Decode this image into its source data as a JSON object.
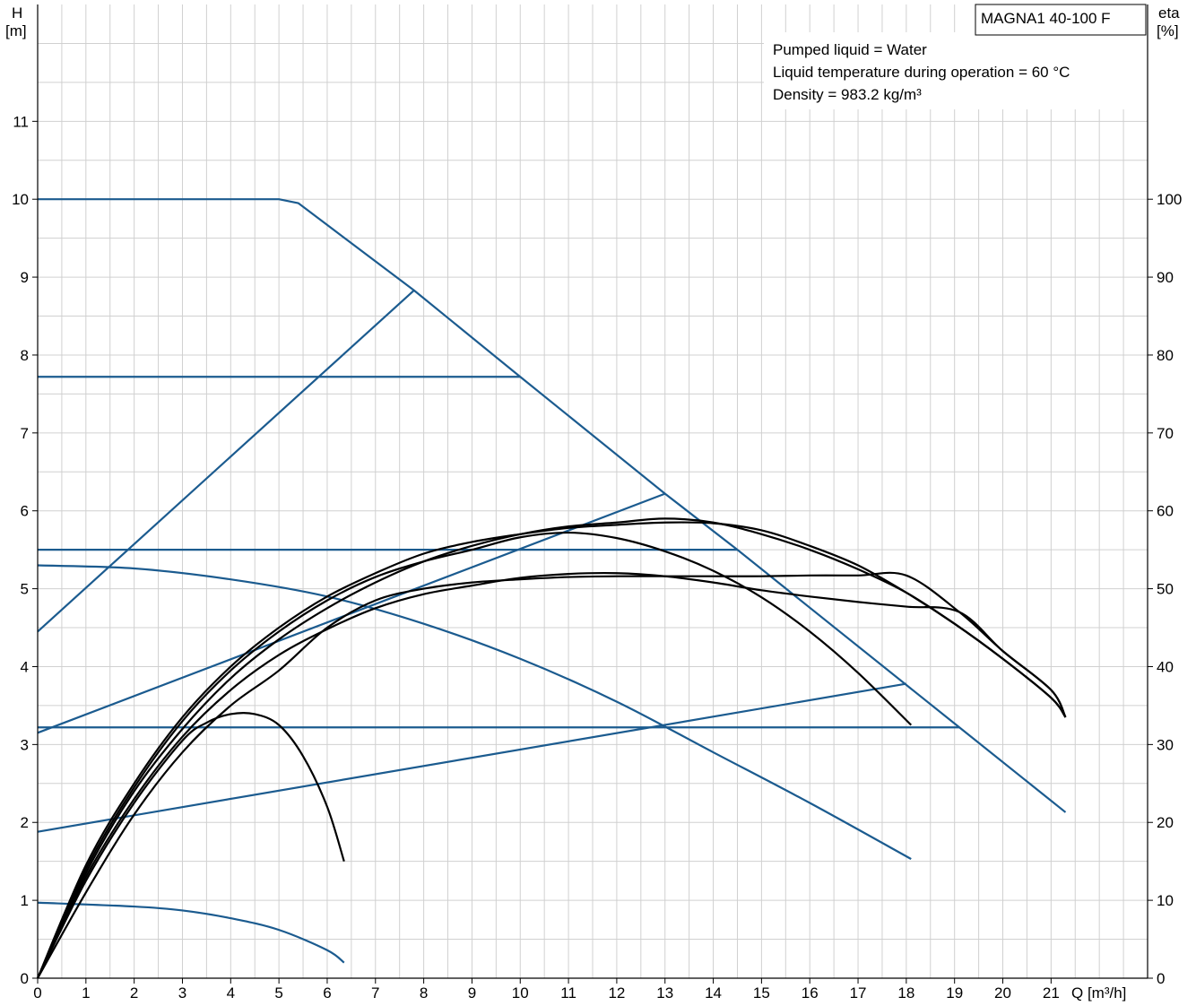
{
  "chart_data": {
    "type": "line",
    "model": "MAGNA1 40-100 F",
    "info_lines": [
      "Pumped liquid = Water",
      "Liquid temperature during operation = 60 °C",
      "Density = 983.2 kg/m³"
    ],
    "y_label": "H",
    "y_unit": "[m]",
    "y2_label": "eta",
    "y2_unit": "[%]",
    "x_label": "Q [m³/h]",
    "xlim": [
      0,
      23
    ],
    "ylim": [
      0,
      12.5
    ],
    "y2lim": [
      0,
      125
    ],
    "x_ticks": [
      0,
      1,
      2,
      3,
      4,
      5,
      6,
      7,
      8,
      9,
      10,
      11,
      12,
      13,
      14,
      15,
      16,
      17,
      18,
      19,
      20,
      21
    ],
    "y_ticks": [
      0,
      1,
      2,
      3,
      4,
      5,
      6,
      7,
      8,
      9,
      10,
      11
    ],
    "y2_ticks": [
      0,
      10,
      20,
      30,
      40,
      50,
      60,
      70,
      80,
      90,
      100
    ],
    "grid": true,
    "colors": {
      "head": "#1b5b8f",
      "efficiency": "#000000",
      "grid": "#d0d0d0"
    },
    "head_curves": [
      {
        "mode": "max_head_constant_curve",
        "points": [
          [
            0,
            10.0
          ],
          [
            5.0,
            10.0
          ],
          [
            5.4,
            9.95
          ],
          [
            7.8,
            8.83
          ],
          [
            10.0,
            7.72
          ],
          [
            13.0,
            6.22
          ],
          [
            14.5,
            5.5
          ],
          [
            19.1,
            3.22
          ],
          [
            21.3,
            2.13
          ]
        ]
      },
      {
        "mode": "proportional_pressure_max",
        "points": [
          [
            0,
            4.45
          ],
          [
            7.8,
            8.83
          ]
        ]
      },
      {
        "mode": "constant_pressure_7.7",
        "points": [
          [
            0,
            7.72
          ],
          [
            10.0,
            7.72
          ]
        ]
      },
      {
        "mode": "proportional_pressure_mid",
        "points": [
          [
            0,
            3.15
          ],
          [
            13.0,
            6.22
          ]
        ]
      },
      {
        "mode": "constant_pressure_5.5",
        "points": [
          [
            0,
            5.5
          ],
          [
            14.5,
            5.5
          ]
        ]
      },
      {
        "mode": "proportional_pressure_min",
        "points": [
          [
            0,
            1.88
          ],
          [
            18.0,
            3.78
          ]
        ]
      },
      {
        "mode": "constant_pressure_3.2",
        "points": [
          [
            0,
            3.22
          ],
          [
            19.1,
            3.22
          ]
        ]
      },
      {
        "mode": "constant_curve_mid",
        "points": [
          [
            0,
            5.3
          ],
          [
            2,
            5.26
          ],
          [
            4,
            5.12
          ],
          [
            6,
            4.9
          ],
          [
            8,
            4.55
          ],
          [
            10,
            4.1
          ],
          [
            12,
            3.55
          ],
          [
            14,
            2.9
          ],
          [
            16,
            2.25
          ],
          [
            18.1,
            1.53
          ]
        ]
      },
      {
        "mode": "constant_curve_min",
        "points": [
          [
            0,
            0.97
          ],
          [
            2,
            0.92
          ],
          [
            3,
            0.87
          ],
          [
            4,
            0.77
          ],
          [
            5,
            0.62
          ],
          [
            6,
            0.36
          ],
          [
            6.35,
            0.2
          ]
        ]
      }
    ],
    "efficiency_curves": [
      {
        "points": [
          [
            0,
            0
          ],
          [
            1,
            12.5
          ],
          [
            2,
            22.5
          ],
          [
            3,
            30.5
          ],
          [
            3.5,
            32.8
          ],
          [
            4,
            33.9
          ],
          [
            4.5,
            33.9
          ],
          [
            5,
            32.5
          ],
          [
            5.5,
            28.5
          ],
          [
            6,
            22
          ],
          [
            6.35,
            15
          ]
        ]
      },
      {
        "points": [
          [
            0,
            0
          ],
          [
            1,
            14
          ],
          [
            2,
            24.5
          ],
          [
            3,
            33
          ],
          [
            4,
            39.5
          ],
          [
            5,
            44.5
          ],
          [
            6,
            48.5
          ],
          [
            7,
            51.5
          ],
          [
            8,
            53.5
          ],
          [
            9,
            55
          ],
          [
            10,
            56.6
          ],
          [
            11,
            57.2
          ],
          [
            12,
            56.5
          ],
          [
            13,
            54.8
          ],
          [
            14,
            52.3
          ],
          [
            15,
            48.9
          ],
          [
            16,
            44.5
          ],
          [
            17,
            39.2
          ],
          [
            18.1,
            32.5
          ]
        ]
      },
      {
        "points": [
          [
            0,
            0
          ],
          [
            1,
            13
          ],
          [
            2,
            23
          ],
          [
            3,
            31
          ],
          [
            4,
            37
          ],
          [
            5,
            41.5
          ],
          [
            6,
            44.8
          ],
          [
            7,
            47.5
          ],
          [
            8,
            49.3
          ],
          [
            9,
            50.4
          ],
          [
            10,
            51.4
          ],
          [
            11,
            51.9
          ],
          [
            12,
            52
          ],
          [
            13,
            51.6
          ],
          [
            14,
            50.8
          ],
          [
            15,
            49.8
          ],
          [
            16,
            49
          ],
          [
            17,
            48.3
          ],
          [
            18,
            47.7
          ],
          [
            19.1,
            47
          ],
          [
            20,
            42
          ],
          [
            21,
            37
          ],
          [
            21.3,
            33.5
          ]
        ]
      },
      {
        "points": [
          [
            0,
            0
          ],
          [
            1,
            11
          ],
          [
            2,
            21
          ],
          [
            3,
            29
          ],
          [
            4,
            35
          ],
          [
            5,
            39.5
          ],
          [
            6,
            45
          ],
          [
            7,
            48.5
          ],
          [
            8,
            50
          ],
          [
            9,
            50.8
          ],
          [
            10,
            51.2
          ],
          [
            11,
            51.5
          ],
          [
            12,
            51.6
          ],
          [
            13,
            51.6
          ],
          [
            14,
            51.6
          ],
          [
            15,
            51.6
          ],
          [
            16,
            51.7
          ],
          [
            17,
            51.7
          ],
          [
            18,
            51.7
          ],
          [
            19.1,
            47
          ],
          [
            20,
            42
          ],
          [
            21,
            37
          ],
          [
            21.3,
            33.5
          ]
        ]
      },
      {
        "points": [
          [
            0,
            0
          ],
          [
            1,
            13.5
          ],
          [
            2,
            24
          ],
          [
            3,
            32
          ],
          [
            4,
            38.5
          ],
          [
            5,
            43.5
          ],
          [
            6,
            47.5
          ],
          [
            7,
            50.8
          ],
          [
            8,
            53.5
          ],
          [
            9,
            55.5
          ],
          [
            10,
            57
          ],
          [
            11,
            58
          ],
          [
            12,
            58.5
          ],
          [
            13,
            59
          ],
          [
            14,
            58.5
          ],
          [
            15,
            57
          ],
          [
            16,
            55
          ],
          [
            17,
            52.5
          ],
          [
            18,
            49.5
          ],
          [
            19,
            45.5
          ],
          [
            20,
            41
          ],
          [
            21,
            36
          ],
          [
            21.3,
            33.5
          ]
        ]
      },
      {
        "points": [
          [
            0,
            0
          ],
          [
            1,
            14.5
          ],
          [
            2,
            25
          ],
          [
            3,
            33.5
          ],
          [
            4,
            40
          ],
          [
            5,
            45
          ],
          [
            6,
            49
          ],
          [
            7,
            52
          ],
          [
            8,
            54.5
          ],
          [
            9,
            56
          ],
          [
            10,
            57
          ],
          [
            11,
            57.8
          ],
          [
            12,
            58.2
          ],
          [
            13,
            58.5
          ],
          [
            14,
            58.4
          ],
          [
            15,
            57.5
          ],
          [
            16,
            55.5
          ],
          [
            17,
            53
          ],
          [
            18,
            49.5
          ],
          [
            19,
            45.5
          ],
          [
            20,
            41
          ],
          [
            21,
            36
          ],
          [
            21.3,
            33.5
          ]
        ]
      }
    ]
  }
}
